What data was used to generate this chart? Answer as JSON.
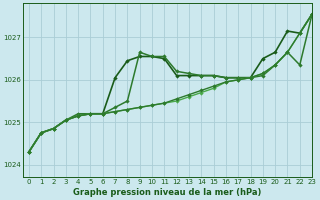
{
  "title": "Graphe pression niveau de la mer (hPa)",
  "bg_color": "#cce8ee",
  "grid_color": "#aacdd6",
  "line_color_dark": "#1a5c1a",
  "line_color_mid": "#2d7a2d",
  "line_color_light": "#4aaa4a",
  "xlim": [
    -0.5,
    23
  ],
  "ylim": [
    1023.7,
    1027.8
  ],
  "xticks": [
    0,
    1,
    2,
    3,
    4,
    5,
    6,
    7,
    8,
    9,
    10,
    11,
    12,
    13,
    14,
    15,
    16,
    17,
    18,
    19,
    20,
    21,
    22,
    23
  ],
  "yticks": [
    1024,
    1025,
    1026,
    1027
  ],
  "series": [
    [
      1024.3,
      1024.75,
      1024.85,
      1025.05,
      1025.15,
      1025.2,
      1025.2,
      1026.05,
      1026.45,
      1026.55,
      1026.55,
      1026.5,
      1026.1,
      1026.1,
      1026.1,
      1026.1,
      1026.05,
      1026.05,
      1026.05,
      1026.5,
      1026.65,
      1027.15,
      1027.1,
      1027.55
    ],
    [
      1024.3,
      1024.75,
      1024.85,
      1025.05,
      1025.2,
      1025.2,
      1025.2,
      1025.35,
      1025.5,
      1026.65,
      1026.55,
      1026.55,
      1026.2,
      1026.15,
      1026.1,
      1026.1,
      1026.05,
      1026.05,
      1026.05,
      1026.1,
      1026.35,
      1026.65,
      1026.35,
      1027.55
    ],
    [
      1024.3,
      1024.75,
      1024.85,
      1025.05,
      1025.15,
      1025.2,
      1025.2,
      1025.25,
      1025.3,
      1025.35,
      1025.4,
      1025.45,
      1025.5,
      1025.6,
      1025.7,
      1025.8,
      1025.95,
      1026.0,
      1026.05,
      1026.15,
      1026.35,
      1026.65,
      1027.1,
      1027.55
    ],
    [
      1024.3,
      1024.75,
      1024.85,
      1025.05,
      1025.15,
      1025.2,
      1025.2,
      1025.25,
      1025.3,
      1025.35,
      1025.4,
      1025.45,
      1025.55,
      1025.65,
      1025.75,
      1025.85,
      1025.95,
      1026.0,
      1026.05,
      1026.15,
      1026.35,
      1026.65,
      1027.1,
      1027.55
    ]
  ]
}
